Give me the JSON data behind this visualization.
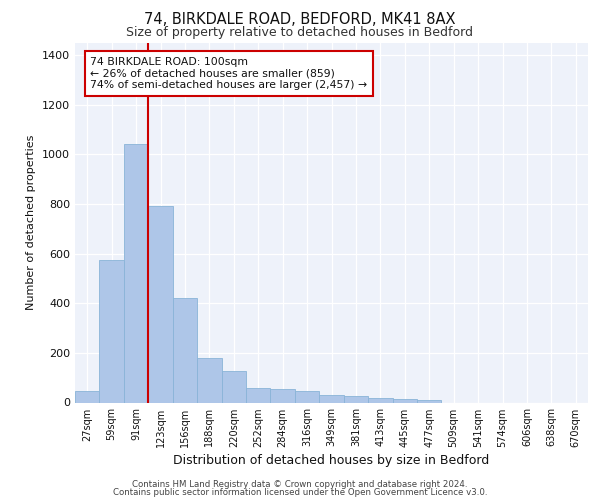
{
  "title1": "74, BIRKDALE ROAD, BEDFORD, MK41 8AX",
  "title2": "Size of property relative to detached houses in Bedford",
  "xlabel": "Distribution of detached houses by size in Bedford",
  "ylabel": "Number of detached properties",
  "categories": [
    "27sqm",
    "59sqm",
    "91sqm",
    "123sqm",
    "156sqm",
    "188sqm",
    "220sqm",
    "252sqm",
    "284sqm",
    "316sqm",
    "349sqm",
    "381sqm",
    "413sqm",
    "445sqm",
    "477sqm",
    "509sqm",
    "541sqm",
    "574sqm",
    "606sqm",
    "638sqm",
    "670sqm"
  ],
  "values": [
    45,
    575,
    1042,
    792,
    420,
    178,
    128,
    57,
    55,
    45,
    30,
    27,
    20,
    15,
    10,
    0,
    0,
    0,
    0,
    0,
    0
  ],
  "bar_color": "#aec6e8",
  "bar_edge_color": "#8ab4d8",
  "marker_label_line1": "74 BIRKDALE ROAD: 100sqm",
  "marker_label_line2": "← 26% of detached houses are smaller (859)",
  "marker_label_line3": "74% of semi-detached houses are larger (2,457) →",
  "vline_color": "#cc0000",
  "vline_x": 2.5,
  "ylim": [
    0,
    1450
  ],
  "yticks": [
    0,
    200,
    400,
    600,
    800,
    1000,
    1200,
    1400
  ],
  "background_color": "#eef2fa",
  "footer1": "Contains HM Land Registry data © Crown copyright and database right 2024.",
  "footer2": "Contains public sector information licensed under the Open Government Licence v3.0."
}
